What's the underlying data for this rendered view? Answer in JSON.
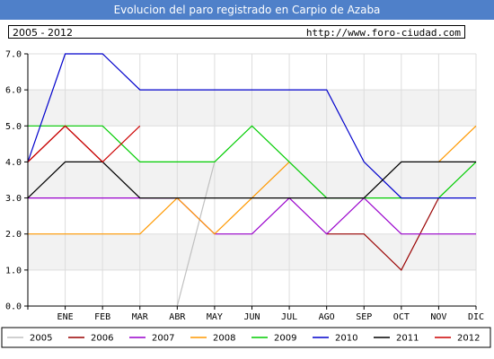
{
  "header": {
    "title": "Evolucion del paro registrado en Carpio de Azaba"
  },
  "info": {
    "period": "2005 - 2012",
    "url": "http://www.foro-ciudad.com"
  },
  "chart_data": {
    "type": "line",
    "title": "Evolucion del paro registrado en Carpio de Azaba",
    "categories": [
      "",
      "ENE",
      "FEB",
      "MAR",
      "ABR",
      "MAY",
      "JUN",
      "JUL",
      "AGO",
      "SEP",
      "OCT",
      "NOV",
      "DIC"
    ],
    "yticks": [
      "0.0",
      "1.0",
      "2.0",
      "3.0",
      "4.0",
      "5.0",
      "6.0",
      "7.0"
    ],
    "ylim": [
      0,
      7
    ],
    "grid": true,
    "legend_position": "bottom",
    "series": [
      {
        "name": "2005",
        "color": "#c0c0c0",
        "values": [
          null,
          null,
          null,
          null,
          0,
          4,
          null,
          null,
          null,
          null,
          null,
          null,
          null
        ]
      },
      {
        "name": "2006",
        "color": "#990000",
        "values": [
          4,
          5,
          4,
          null,
          null,
          null,
          null,
          null,
          2,
          2,
          1,
          3,
          null
        ]
      },
      {
        "name": "2007",
        "color": "#9900cc",
        "values": [
          3,
          3,
          3,
          3,
          3,
          2,
          2,
          3,
          2,
          3,
          2,
          2,
          2
        ]
      },
      {
        "name": "2008",
        "color": "#ff9900",
        "values": [
          2,
          2,
          2,
          2,
          3,
          2,
          3,
          4,
          null,
          null,
          null,
          4,
          5
        ]
      },
      {
        "name": "2009",
        "color": "#00cc00",
        "values": [
          5,
          5,
          5,
          4,
          4,
          4,
          5,
          4,
          3,
          3,
          3,
          3,
          4
        ]
      },
      {
        "name": "2010",
        "color": "#0000cc",
        "values": [
          4,
          7,
          7,
          6,
          6,
          6,
          6,
          6,
          6,
          4,
          3,
          3,
          3
        ]
      },
      {
        "name": "2011",
        "color": "#000000",
        "values": [
          3,
          4,
          4,
          3,
          3,
          3,
          3,
          3,
          3,
          3,
          4,
          4,
          4
        ]
      },
      {
        "name": "2012",
        "color": "#cc0000",
        "values": [
          4,
          5,
          4,
          5,
          null,
          null,
          null,
          null,
          null,
          null,
          null,
          null,
          null
        ]
      }
    ]
  }
}
